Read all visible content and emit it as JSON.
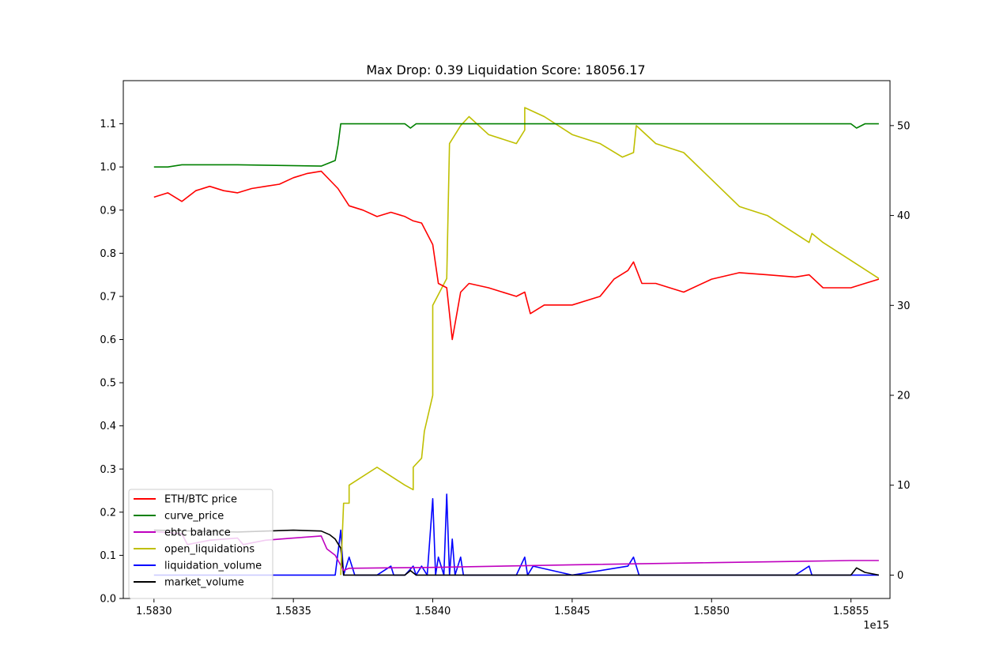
{
  "chart_data": {
    "type": "line",
    "title": "Max Drop: 0.39 Liquidation Score: 18056.17",
    "xlabel": "",
    "ylabel": "",
    "x_offset_label": "1e15",
    "x_ticks": [
      "1.5830",
      "1.5835",
      "1.5840",
      "1.5845",
      "1.5850",
      "1.5855"
    ],
    "x_tick_values": [
      1.583,
      1.5835,
      1.584,
      1.5845,
      1.585,
      1.5855
    ],
    "xlim": [
      1.58289,
      1.58564
    ],
    "y_left_ticks": [
      "0.0",
      "0.1",
      "0.2",
      "0.3",
      "0.4",
      "0.5",
      "0.6",
      "0.7",
      "0.8",
      "0.9",
      "1.0",
      "1.1"
    ],
    "y_left_tick_values": [
      0.0,
      0.1,
      0.2,
      0.3,
      0.4,
      0.5,
      0.6,
      0.7,
      0.8,
      0.9,
      1.0,
      1.1
    ],
    "ylim_left": [
      0.0,
      1.2
    ],
    "y_right_ticks": [
      "0",
      "10",
      "20",
      "30",
      "40",
      "50"
    ],
    "y_right_tick_values": [
      0,
      10,
      20,
      30,
      40,
      50
    ],
    "ylim_right": [
      -2.6,
      55.0
    ],
    "grid": false,
    "legend_position": "lower-left",
    "series": [
      {
        "name": "ETH/BTC price",
        "color": "#ff0000",
        "axis": "left",
        "x": [
          1.583,
          1.58305,
          1.5831,
          1.58315,
          1.5832,
          1.58325,
          1.5833,
          1.58335,
          1.5834,
          1.58345,
          1.5835,
          1.58355,
          1.5836,
          1.58363,
          1.58366,
          1.5837,
          1.58375,
          1.5838,
          1.58385,
          1.5839,
          1.58393,
          1.58396,
          1.584,
          1.58402,
          1.58405,
          1.58407,
          1.5841,
          1.58413,
          1.5842,
          1.5843,
          1.58433,
          1.58435,
          1.5844,
          1.5845,
          1.5846,
          1.58465,
          1.5847,
          1.58472,
          1.58475,
          1.5848,
          1.58485,
          1.5849,
          1.585,
          1.5851,
          1.5852,
          1.5853,
          1.58535,
          1.5854,
          1.5855,
          1.58555,
          1.5856
        ],
        "y": [
          0.93,
          0.94,
          0.92,
          0.945,
          0.955,
          0.945,
          0.94,
          0.95,
          0.955,
          0.96,
          0.975,
          0.985,
          0.99,
          0.97,
          0.95,
          0.91,
          0.9,
          0.885,
          0.895,
          0.885,
          0.875,
          0.87,
          0.82,
          0.73,
          0.72,
          0.6,
          0.71,
          0.73,
          0.72,
          0.7,
          0.71,
          0.66,
          0.68,
          0.68,
          0.7,
          0.74,
          0.76,
          0.78,
          0.73,
          0.73,
          0.72,
          0.71,
          0.74,
          0.755,
          0.75,
          0.745,
          0.75,
          0.72,
          0.72,
          0.73,
          0.74
        ]
      },
      {
        "name": "curve_price",
        "color": "#008000",
        "axis": "left",
        "x": [
          1.583,
          1.58305,
          1.5831,
          1.5833,
          1.5836,
          1.58365,
          1.58366,
          1.58367,
          1.5837,
          1.5839,
          1.58392,
          1.58394,
          1.584,
          1.5855,
          1.58552,
          1.58555,
          1.5856
        ],
        "y": [
          1.0,
          1.0,
          1.005,
          1.005,
          1.002,
          1.015,
          1.05,
          1.1,
          1.1,
          1.1,
          1.09,
          1.1,
          1.1,
          1.1,
          1.09,
          1.1,
          1.1
        ]
      },
      {
        "name": "ebtc balance",
        "color": "#bf00bf",
        "axis": "left",
        "x": [
          1.583,
          1.5831,
          1.58312,
          1.5832,
          1.5833,
          1.58332,
          1.5834,
          1.5835,
          1.5836,
          1.58362,
          1.58365,
          1.58368,
          1.5837,
          1.584,
          1.5845,
          1.585,
          1.5855,
          1.5856
        ],
        "y": [
          0.155,
          0.15,
          0.125,
          0.135,
          0.14,
          0.125,
          0.135,
          0.14,
          0.145,
          0.115,
          0.1,
          0.065,
          0.07,
          0.072,
          0.078,
          0.083,
          0.088,
          0.088
        ]
      },
      {
        "name": "open_liquidations",
        "color": "#bfbf00",
        "axis": "right",
        "x": [
          1.58367,
          1.58368,
          1.5837,
          1.5837,
          1.5838,
          1.58385,
          1.5839,
          1.58393,
          1.58393,
          1.58396,
          1.58397,
          1.584,
          1.584,
          1.58405,
          1.58406,
          1.5841,
          1.58413,
          1.5842,
          1.5843,
          1.58433,
          1.58433,
          1.5844,
          1.5845,
          1.5846,
          1.58468,
          1.58472,
          1.58473,
          1.5848,
          1.5849,
          1.585,
          1.5851,
          1.5852,
          1.58525,
          1.5853,
          1.58535,
          1.58536,
          1.5854,
          1.5855,
          1.5856
        ],
        "y": [
          0,
          8,
          8,
          10,
          12,
          11,
          10,
          9.5,
          12,
          13,
          16,
          20,
          30,
          33,
          48,
          50,
          51,
          49,
          48,
          49.5,
          52,
          51,
          49,
          48,
          46.5,
          47,
          50,
          48,
          47,
          44,
          41,
          40,
          39,
          38,
          37,
          38,
          37,
          35,
          33
        ]
      },
      {
        "name": "liquidation_volume",
        "color": "#0000ff",
        "axis": "right",
        "x": [
          1.583,
          1.58365,
          1.58367,
          1.58368,
          1.5837,
          1.58372,
          1.5838,
          1.58385,
          1.58386,
          1.5839,
          1.58393,
          1.58394,
          1.58396,
          1.58398,
          1.584,
          1.58401,
          1.58402,
          1.58404,
          1.58405,
          1.58406,
          1.58407,
          1.58408,
          1.5841,
          1.58411,
          1.5842,
          1.5843,
          1.58433,
          1.58434,
          1.58436,
          1.5845,
          1.5847,
          1.58472,
          1.58474,
          1.5848,
          1.585,
          1.5852,
          1.5853,
          1.58535,
          1.58536,
          1.5855,
          1.5856
        ],
        "y": [
          0,
          0,
          5,
          0,
          2,
          0,
          0,
          1,
          0,
          0,
          1,
          0,
          1,
          0,
          8.5,
          0,
          2,
          0,
          9,
          0,
          4,
          0,
          2,
          0,
          0,
          0,
          2,
          0,
          1,
          0,
          1,
          2,
          0,
          0,
          0,
          0,
          0,
          1,
          0,
          0,
          0
        ]
      },
      {
        "name": "market_volume",
        "color": "#000000",
        "axis": "right",
        "x": [
          1.583,
          1.5833,
          1.5835,
          1.5836,
          1.58363,
          1.58365,
          1.58367,
          1.58368,
          1.5837,
          1.5839,
          1.58392,
          1.58394,
          1.584,
          1.5845,
          1.5855,
          1.58552,
          1.58555,
          1.5856
        ],
        "y": [
          5,
          4.8,
          5,
          4.9,
          4.5,
          4,
          3,
          0,
          0,
          0,
          0.5,
          0,
          0,
          0,
          0,
          0.8,
          0.3,
          0
        ]
      }
    ]
  }
}
